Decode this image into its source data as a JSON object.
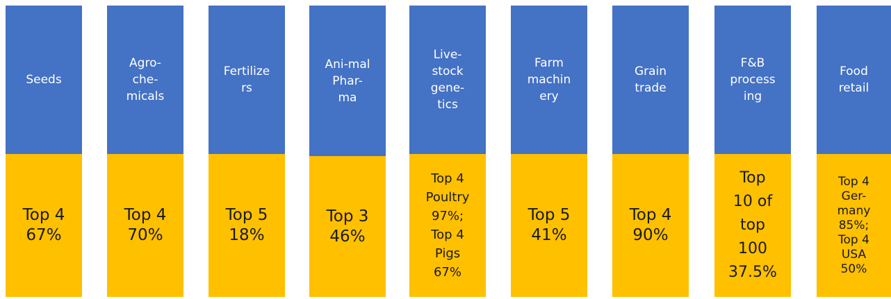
{
  "columns": [
    {
      "label": "Seeds",
      "value": "Top 4\n67%"
    },
    {
      "label": "Agro-\nche-\nmicals",
      "value": "Top 4\n70%"
    },
    {
      "label": "Fertilize\nrs",
      "value": "Top 5\n18%"
    },
    {
      "label": "Ani-mal\nPhar-\nma",
      "value": "Top 3\n46%"
    },
    {
      "label": "Live-\nstock\ngene-\ntics",
      "value": "Top 4\nPoultry\n97%;\nTop 4\nPigs\n67%"
    },
    {
      "label": "Farm\nmachin\nery",
      "value": "Top 5\n41%"
    },
    {
      "label": "Grain\ntrade",
      "value": "Top 4\n90%"
    },
    {
      "label": "F&B\nprocess\ning",
      "value": "Top\n10 of\ntop\n100\n37.5%"
    },
    {
      "label": "Food\nretail",
      "value": "Top 4\nGer-\nmany\n85%;\nTop 4\nUSA\n50%"
    }
  ]
}
